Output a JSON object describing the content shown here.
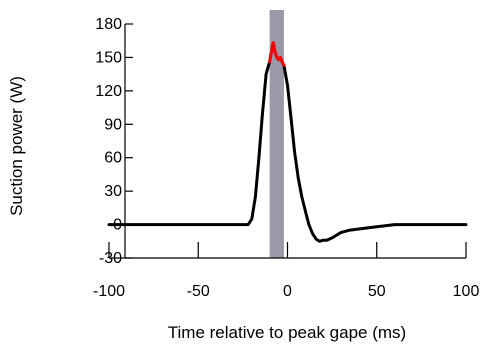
{
  "chart_data": {
    "type": "line",
    "title": "",
    "xlabel": "Time relative to peak gape (ms)",
    "ylabel": "Suction power (W)",
    "xlim": [
      -100,
      100
    ],
    "ylim": [
      -30,
      180
    ],
    "xticks": [
      -100,
      -50,
      0,
      50,
      100
    ],
    "yticks": [
      -30,
      0,
      30,
      60,
      90,
      120,
      150,
      180
    ],
    "grid": false,
    "legend": "none",
    "colors": {
      "line": "#000000",
      "peak_highlight": "#ff0000",
      "band": "#9b99a8"
    },
    "shaded_band": {
      "x0": -10,
      "x1": -2
    },
    "series": [
      {
        "x": [
          -100,
          -80,
          -60,
          -40,
          -30,
          -25,
          -22,
          -20,
          -18,
          -16,
          -14,
          -12,
          -10,
          -9,
          -8,
          -7,
          -6,
          -5,
          -4,
          -3,
          -2,
          0,
          2,
          4,
          6,
          8,
          10,
          12,
          14,
          16,
          18,
          20,
          22,
          25,
          30,
          35,
          40,
          50,
          60,
          65,
          70,
          80,
          90,
          100
        ],
        "y": [
          0,
          0,
          0,
          0,
          0,
          0,
          0,
          5,
          25,
          60,
          100,
          135,
          146,
          155,
          163,
          155,
          150,
          148,
          150,
          146,
          143,
          125,
          95,
          65,
          42,
          25,
          12,
          0,
          -8,
          -13,
          -15,
          -14,
          -14,
          -12,
          -7,
          -5,
          -4,
          -2,
          0,
          0,
          0,
          0,
          0,
          0
        ]
      }
    ],
    "highlight_segment": {
      "x0": -10,
      "x1": -2
    }
  }
}
